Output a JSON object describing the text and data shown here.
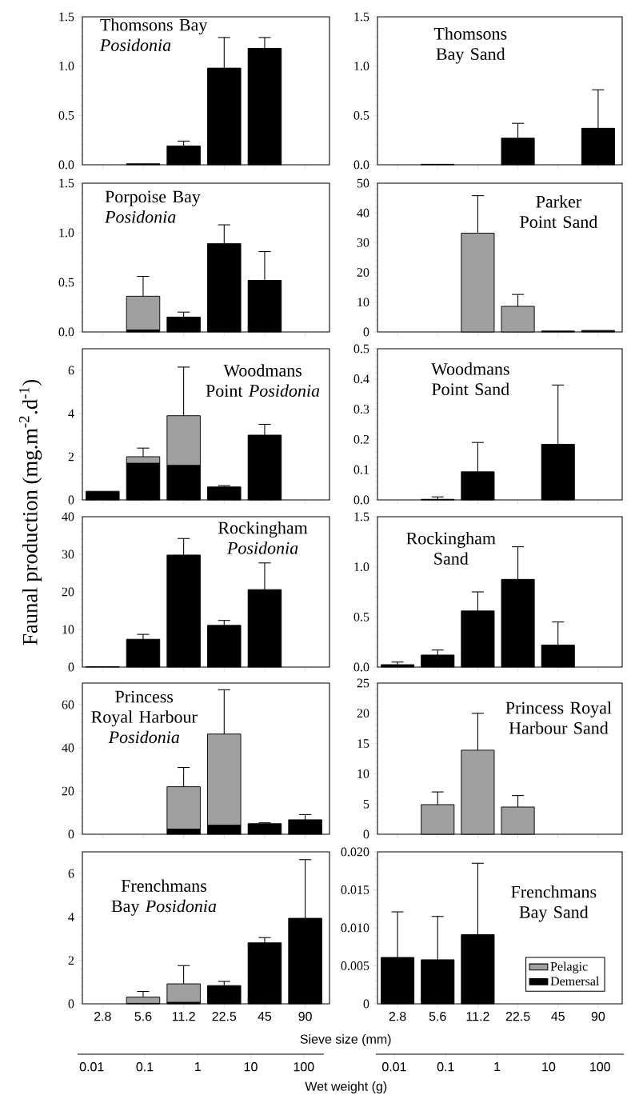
{
  "chart_data": [
    {
      "type": "bar",
      "title": "Thomsons Bay *Posidonia*",
      "categories": [
        "2.8",
        "5.6",
        "11.2",
        "22.5",
        "45",
        "90"
      ],
      "stacked": true,
      "tick_labels": "y",
      "ylim": [
        0,
        1.5
      ],
      "yticks": [
        {
          "value": 0,
          "label": "0.0"
        },
        {
          "value": 0.5,
          "label": "0.5"
        },
        {
          "value": 1,
          "label": "1.0"
        },
        {
          "value": 1.5,
          "label": "1.5"
        }
      ],
      "series": [
        {
          "color": "#000000",
          "values": [
            null,
            0.01,
            0.19,
            0.98,
            1.18,
            null
          ],
          "errors": [
            null,
            null,
            [
              0.19,
              0.24
            ],
            [
              0.98,
              1.29
            ],
            [
              1.18,
              1.29
            ],
            null
          ]
        }
      ]
    },
    {
      "type": "bar",
      "title": "Thomsons Bay Sand",
      "categories": [
        "2.8",
        "5.6",
        "11.2",
        "22.5",
        "45",
        "90"
      ],
      "stacked": true,
      "tick_labels": "y",
      "ylim": [
        0,
        1.5
      ],
      "yticks": [
        {
          "value": 0,
          "label": "0.0"
        },
        {
          "value": 0.5,
          "label": "0.5"
        },
        {
          "value": 1,
          "label": "1.0"
        },
        {
          "value": 1.5,
          "label": "1.5"
        }
      ],
      "series": [
        {
          "color": "#000000",
          "values": [
            null,
            0.005,
            null,
            0.27,
            null,
            0.37
          ],
          "errors": [
            null,
            null,
            null,
            [
              0.27,
              0.42
            ],
            null,
            [
              0.37,
              0.76
            ]
          ]
        }
      ]
    },
    {
      "type": "bar",
      "title": "Porpoise Bay *Posidonia*",
      "categories": [
        "2.8",
        "5.6",
        "11.2",
        "22.5",
        "45",
        "90"
      ],
      "stacked": true,
      "tick_labels": "y",
      "ylim": [
        0,
        1.5
      ],
      "yticks": [
        {
          "value": 0,
          "label": "0.0"
        },
        {
          "value": 0.5,
          "label": "0.5"
        },
        {
          "value": 1,
          "label": "1.0"
        },
        {
          "value": 1.5,
          "label": "1.5"
        }
      ],
      "series": [
        {
          "color": "#000000",
          "values": [
            null,
            0.02,
            0.15,
            0.89,
            0.52,
            null
          ],
          "errors": [
            null,
            null,
            [
              0.15,
              0.2
            ],
            [
              0.89,
              1.08
            ],
            [
              0.52,
              0.81
            ],
            null
          ]
        },
        {
          "color": "#a0a0a0",
          "values": [
            null,
            0.34,
            null,
            null,
            null,
            null
          ],
          "errors": [
            null,
            [
              0.36,
              0.56
            ],
            null,
            null,
            null,
            null
          ]
        }
      ]
    },
    {
      "type": "bar",
      "title": "Parker Point Sand",
      "categories": [
        "2.8",
        "5.6",
        "11.2",
        "22.5",
        "45",
        "90"
      ],
      "stacked": true,
      "tick_labels": "y",
      "ylim": [
        0,
        50
      ],
      "yticks": [
        0,
        10,
        20,
        30,
        40,
        50
      ],
      "series": [
        {
          "color": "#000000",
          "values": [
            null,
            null,
            null,
            null,
            0.3,
            0.5
          ]
        },
        {
          "color": "#a0a0a0",
          "values": [
            null,
            null,
            33.2,
            8.6,
            null,
            null
          ],
          "errors": [
            null,
            null,
            [
              33.2,
              45.8
            ],
            [
              8.6,
              12.6
            ],
            null,
            null
          ]
        }
      ]
    },
    {
      "type": "bar",
      "title": "Woodmans Point *Posidonia*",
      "categories": [
        "2.8",
        "5.6",
        "11.2",
        "22.5",
        "45",
        "90"
      ],
      "stacked": true,
      "tick_labels": "y",
      "ylim": [
        0,
        7
      ],
      "yticks": [
        0,
        2,
        4,
        6
      ],
      "series": [
        {
          "color": "#000000",
          "values": [
            0.4,
            1.7,
            1.6,
            0.6,
            3.0,
            null
          ],
          "errors": [
            null,
            null,
            null,
            [
              0.6,
              0.66
            ],
            [
              3.0,
              3.5
            ],
            null
          ]
        },
        {
          "color": "#a0a0a0",
          "values": [
            null,
            0.3,
            2.3,
            null,
            null,
            null
          ],
          "errors": [
            null,
            [
              2.0,
              2.4
            ],
            [
              3.9,
              6.15
            ],
            null,
            null,
            null
          ]
        }
      ]
    },
    {
      "type": "bar",
      "title": "Woodmans Point Sand",
      "categories": [
        "2.8",
        "5.6",
        "11.2",
        "22.5",
        "45",
        "90"
      ],
      "stacked": true,
      "tick_labels": "y",
      "ylim": [
        0,
        0.5
      ],
      "yticks": [
        {
          "value": 0,
          "label": "0.0"
        },
        {
          "value": 0.1,
          "label": "0.1"
        },
        {
          "value": 0.2,
          "label": "0.2"
        },
        {
          "value": 0.3,
          "label": "0.3"
        },
        {
          "value": 0.4,
          "label": "0.4"
        },
        {
          "value": 0.5,
          "label": "0.5"
        }
      ],
      "series": [
        {
          "color": "#000000",
          "values": [
            null,
            0.002,
            0.093,
            null,
            0.184,
            null
          ],
          "errors": [
            null,
            [
              0.002,
              0.01
            ],
            [
              0.093,
              0.19
            ],
            null,
            [
              0.184,
              0.38
            ],
            null
          ]
        }
      ]
    },
    {
      "type": "bar",
      "title": "Rockingham *Posidonia*",
      "ylabel": "Faunal production (mg.m$^{-2}$.d$^{-1}$)",
      "categories": [
        "2.8",
        "5.6",
        "11.2",
        "22.5",
        "45",
        "90"
      ],
      "stacked": true,
      "tick_labels": "y",
      "ylim": [
        0,
        40
      ],
      "yticks": [
        0,
        10,
        20,
        30,
        40
      ],
      "series": [
        {
          "color": "#000000",
          "values": [
            0.1,
            7.4,
            29.8,
            11.1,
            20.6,
            null
          ],
          "errors": [
            null,
            [
              7.4,
              8.7
            ],
            [
              29.8,
              34.2
            ],
            [
              11.1,
              12.4
            ],
            [
              20.6,
              27.7
            ],
            null
          ]
        }
      ]
    },
    {
      "type": "bar",
      "title": "Rockingham Sand",
      "categories": [
        "2.8",
        "5.6",
        "11.2",
        "22.5",
        "45",
        "90"
      ],
      "stacked": true,
      "tick_labels": "y",
      "ylim": [
        0,
        1.5
      ],
      "yticks": [
        {
          "value": 0,
          "label": "0.0"
        },
        {
          "value": 0.5,
          "label": "0.5"
        },
        {
          "value": 1,
          "label": "1.0"
        },
        {
          "value": 1.5,
          "label": "1.5"
        }
      ],
      "series": [
        {
          "color": "#000000",
          "values": [
            0.024,
            0.12,
            0.56,
            0.875,
            0.22,
            null
          ],
          "errors": [
            [
              0.024,
              0.05
            ],
            [
              0.12,
              0.17
            ],
            [
              0.56,
              0.75
            ],
            [
              0.875,
              1.2
            ],
            [
              0.22,
              0.45
            ],
            null
          ]
        }
      ]
    },
    {
      "type": "bar",
      "title": "Princess Royal Harbour *Posidonia*",
      "categories": [
        "2.8",
        "5.6",
        "11.2",
        "22.5",
        "45",
        "90"
      ],
      "stacked": true,
      "tick_labels": "y",
      "ylim": [
        0,
        70
      ],
      "yticks": [
        0,
        20,
        40,
        60
      ],
      "series": [
        {
          "color": "#000000",
          "values": [
            null,
            null,
            2.4,
            4.2,
            4.9,
            6.7
          ],
          "errors": [
            null,
            null,
            null,
            null,
            [
              4.9,
              5.3
            ],
            [
              6.7,
              9.1
            ]
          ]
        },
        {
          "color": "#a0a0a0",
          "values": [
            null,
            null,
            19.6,
            42.2,
            null,
            null
          ],
          "errors": [
            null,
            null,
            [
              22.0,
              30.9
            ],
            [
              46.4,
              66.9
            ],
            null,
            null
          ]
        }
      ]
    },
    {
      "type": "bar",
      "title": "Princess Royal Harbour Sand",
      "categories": [
        "2.8",
        "5.6",
        "11.2",
        "22.5",
        "45",
        "90"
      ],
      "stacked": true,
      "tick_labels": "y",
      "ylim": [
        0,
        25
      ],
      "yticks": [
        0,
        5,
        10,
        15,
        20,
        25
      ],
      "series": [
        {
          "color": "#a0a0a0",
          "values": [
            null,
            4.9,
            13.9,
            4.5,
            null,
            null
          ],
          "errors": [
            null,
            [
              4.9,
              7.0
            ],
            [
              13.9,
              20.0
            ],
            [
              4.5,
              6.4
            ],
            null,
            null
          ]
        }
      ]
    },
    {
      "type": "bar",
      "title": "Frenchmans Bay *Posidonia*",
      "categories": [
        "2.8",
        "5.6",
        "11.2",
        "22.5",
        "45",
        "90"
      ],
      "stacked": true,
      "ylim": [
        0,
        7
      ],
      "yticks": [
        0,
        2,
        4,
        6
      ],
      "log": "x2",
      "x2lim": [
        0.0054,
        240
      ],
      "x2ticks": [
        0.01,
        0.1,
        1,
        10,
        100
      ],
      "series": [
        {
          "color": "#000000",
          "values": [
            null,
            0.02,
            0.07,
            0.84,
            2.81,
            3.94
          ],
          "errors": [
            null,
            null,
            null,
            [
              0.84,
              1.03
            ],
            [
              2.81,
              3.05
            ],
            [
              3.94,
              6.64
            ]
          ]
        },
        {
          "color": "#a0a0a0",
          "values": [
            null,
            0.29,
            0.85,
            null,
            null,
            null
          ],
          "errors": [
            null,
            [
              0.31,
              0.57
            ],
            [
              0.92,
              1.76
            ],
            null,
            null,
            null
          ]
        }
      ]
    },
    {
      "type": "bar",
      "title": "Frenchmans Bay Sand",
      "xlabel": "Sieve size (mm)",
      "x2label": "Wet weight (g)",
      "categories": [
        "2.8",
        "5.6",
        "11.2",
        "22.5",
        "45",
        "90"
      ],
      "stacked": true,
      "legend": "bottom right",
      "ylim": [
        0,
        0.02
      ],
      "yticks": [
        0,
        0.005,
        {
          "value": 0.01,
          "label": "0.010"
        },
        0.015,
        {
          "value": 0.02,
          "label": "0.020"
        }
      ],
      "log": "x2",
      "x2lim": [
        0.0044,
        290
      ],
      "x2ticks": [
        0.01,
        0.1,
        1,
        10,
        100
      ],
      "series": [
        {
          "name": "Demersal",
          "color": "#000000",
          "values": [
            0.0061,
            0.0058,
            0.0091,
            null,
            null,
            null
          ],
          "errors": [
            [
              0.0061,
              0.0121
            ],
            [
              0.0058,
              0.0115
            ],
            [
              0.0091,
              0.0185
            ],
            null,
            null,
            null
          ]
        },
        {
          "name": "Pelagic",
          "color": "#a0a0a0",
          "values": [
            null,
            null,
            null,
            null,
            null,
            null
          ]
        }
      ]
    }
  ]
}
